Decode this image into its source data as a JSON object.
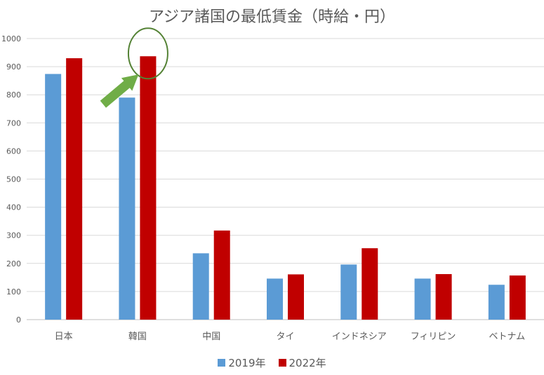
{
  "chart_data": {
    "type": "bar",
    "title": "アジア諸国の最低賃金（時給・円）",
    "categories": [
      "日本",
      "韓国",
      "中国",
      "タイ",
      "インドネシア",
      "フィリピン",
      "ベトナム"
    ],
    "series": [
      {
        "name": "2019年",
        "color": "#5B9BD5",
        "values": [
          874,
          790,
          236,
          146,
          196,
          146,
          124
        ]
      },
      {
        "name": "2022年",
        "color": "#C00000",
        "values": [
          930,
          937,
          317,
          161,
          254,
          162,
          157
        ]
      }
    ],
    "ylim": [
      0,
      1000
    ],
    "yticks": [
      0,
      100,
      200,
      300,
      400,
      500,
      600,
      700,
      800,
      900,
      1000
    ],
    "grid": true,
    "legend": "bottom",
    "annotation": {
      "type": "arrow-and-ellipse",
      "target_category": "韓国",
      "target_series": "2022年",
      "arrow_color": "#70AD47",
      "ellipse_color": "#548235"
    }
  }
}
